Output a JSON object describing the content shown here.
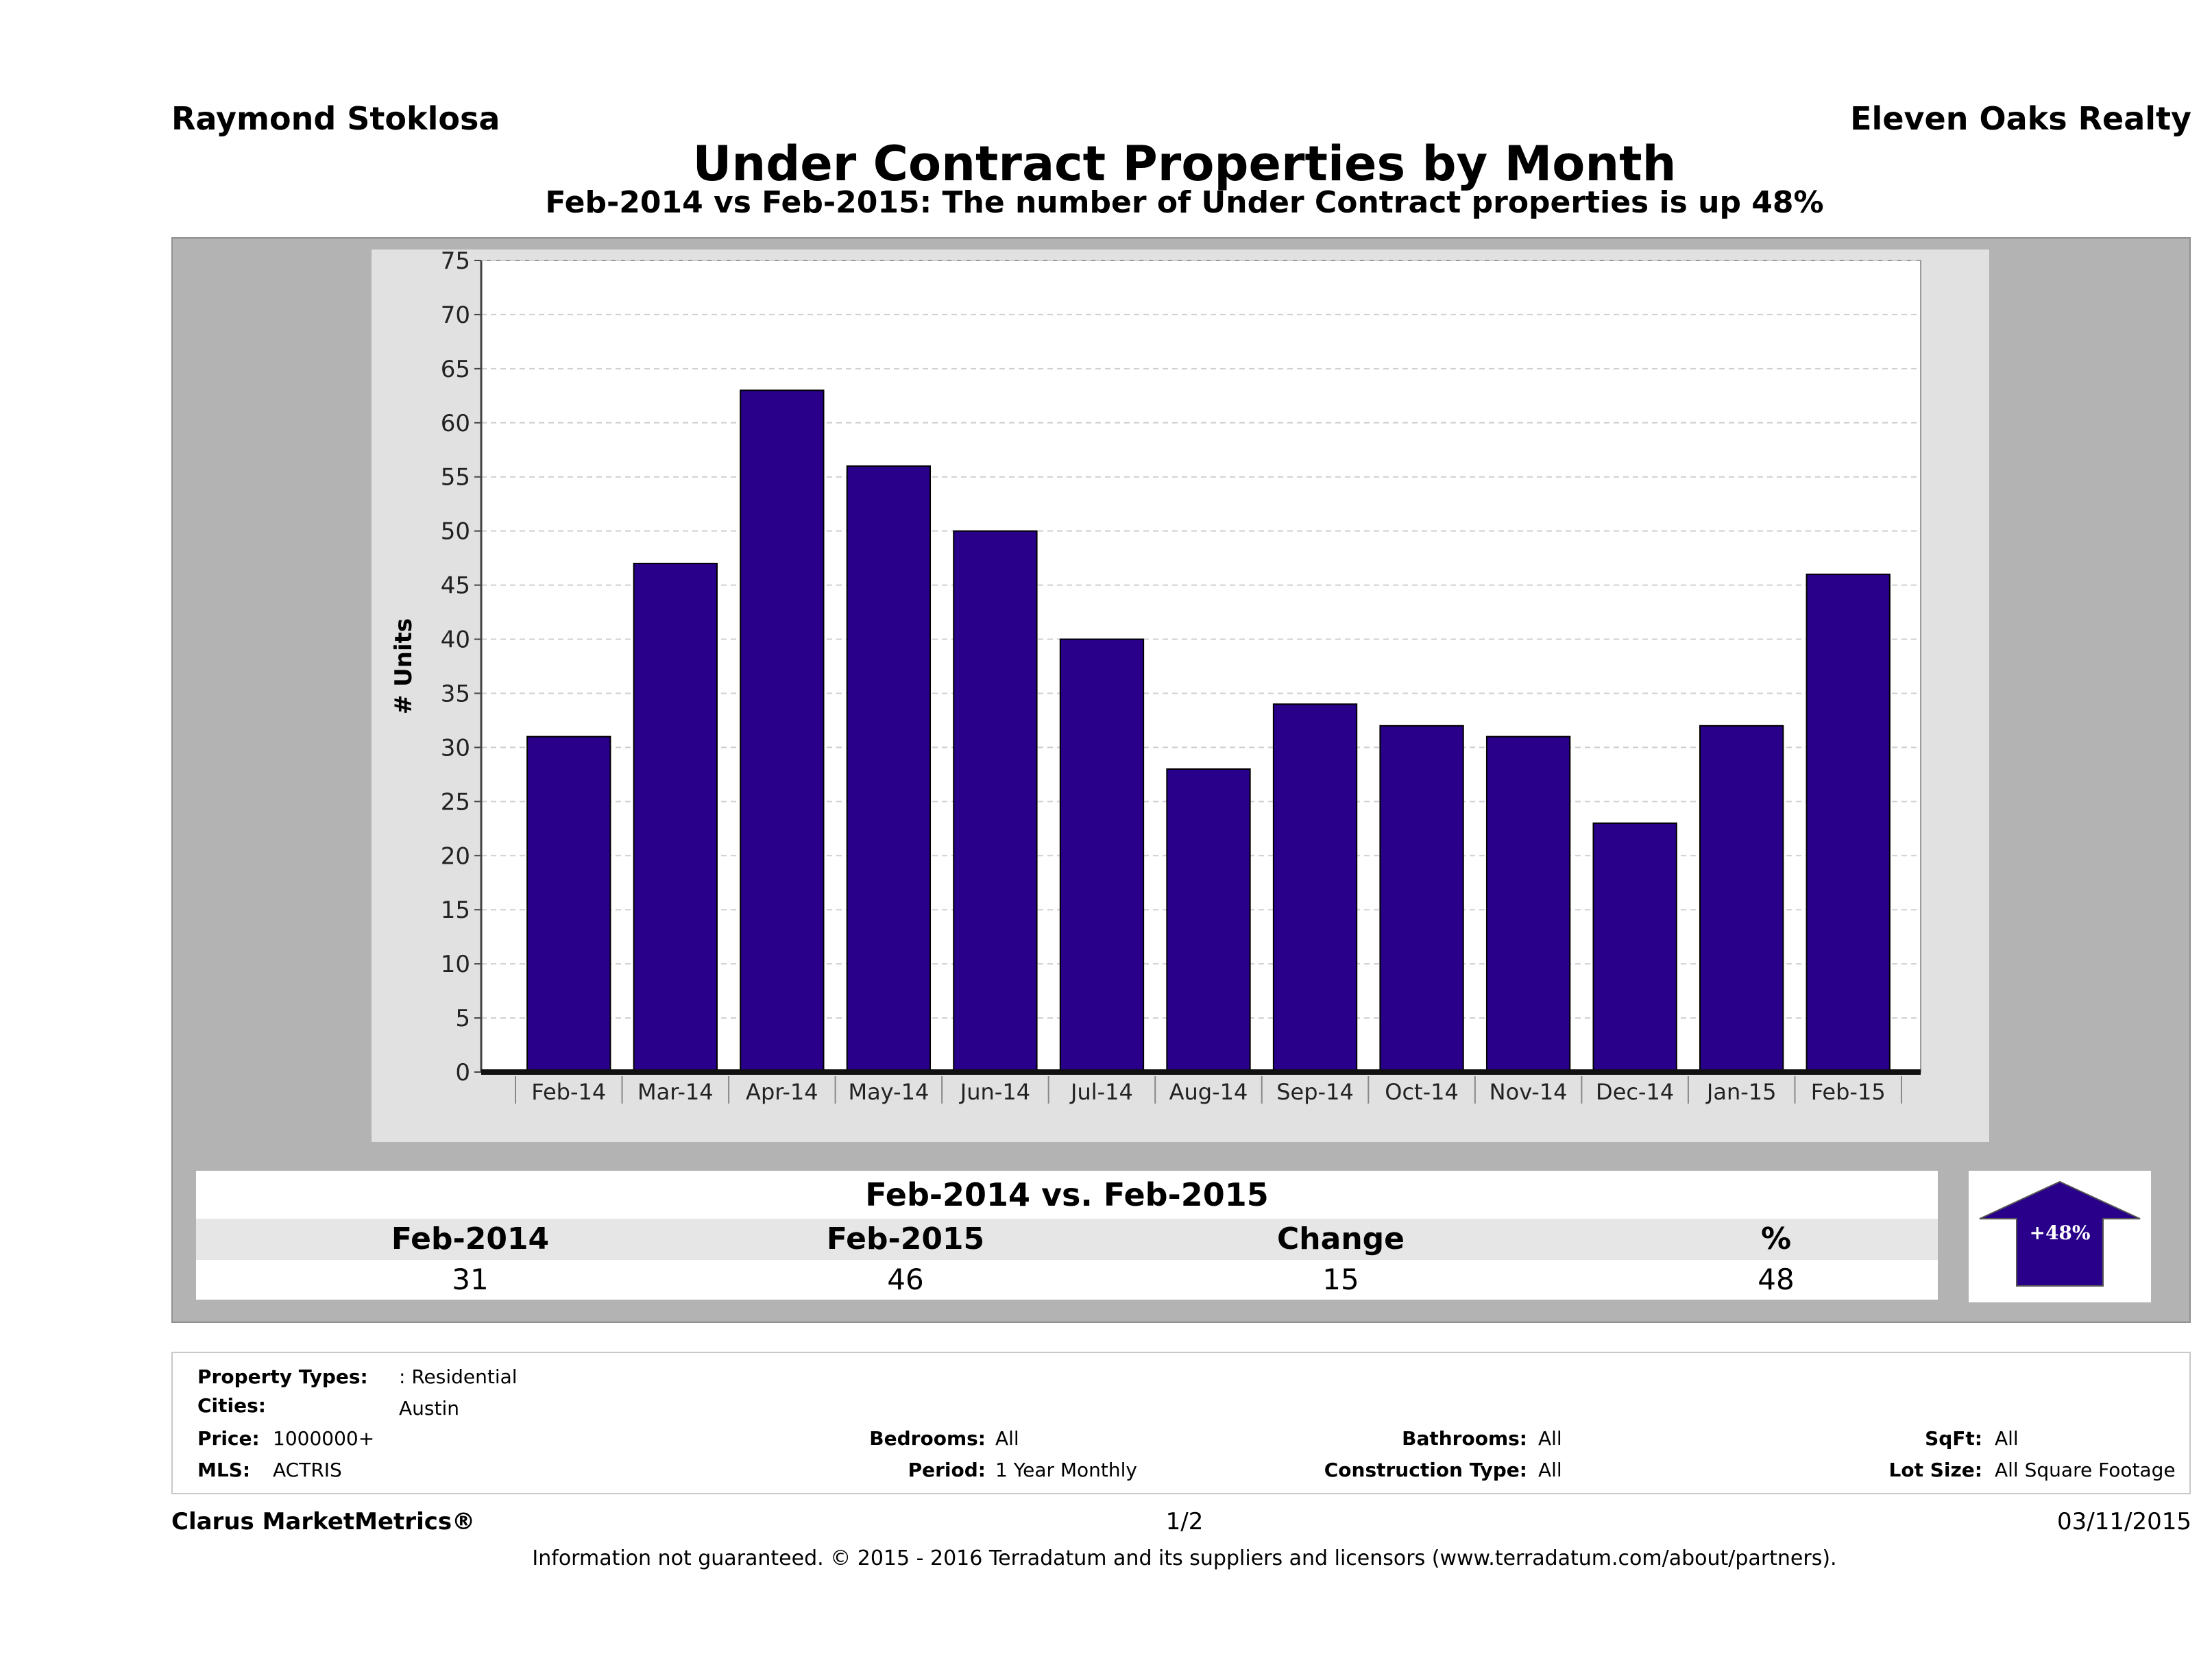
{
  "header": {
    "agent": "Raymond Stoklosa",
    "company": "Eleven Oaks Realty",
    "title": "Under Contract Properties by Month",
    "subtitle": "Feb-2014 vs Feb-2015: The number of Under Contract   properties is up 48%"
  },
  "chart_data": {
    "type": "bar",
    "title": "Under Contract Properties by Month",
    "ylabel": "# Units",
    "xlabel": "",
    "ylim": [
      0,
      75
    ],
    "yticks": [
      0,
      5,
      10,
      15,
      20,
      25,
      30,
      35,
      40,
      45,
      50,
      55,
      60,
      65,
      70,
      75
    ],
    "categories": [
      "Feb-14",
      "Mar-14",
      "Apr-14",
      "May-14",
      "Jun-14",
      "Jul-14",
      "Aug-14",
      "Sep-14",
      "Oct-14",
      "Nov-14",
      "Dec-14",
      "Jan-15",
      "Feb-15"
    ],
    "values": [
      31,
      47,
      63,
      56,
      50,
      40,
      28,
      34,
      32,
      31,
      23,
      32,
      46
    ],
    "bar_color": "#29008a",
    "grid": true
  },
  "comparison": {
    "title": "Feb-2014 vs. Feb-2015",
    "headers": [
      "Feb-2014",
      "Feb-2015",
      "Change",
      "%"
    ],
    "values": [
      "31",
      "46",
      "15",
      "48"
    ],
    "arrow_label": "+48%",
    "arrow_direction": "up"
  },
  "criteria": {
    "property_types_label": "Property Types:",
    "property_types_value": ": Residential",
    "cities_label": "Cities:",
    "cities_value": "Austin",
    "price_label": "Price:",
    "price_value": "1000000+",
    "mls_label": "MLS:",
    "mls_value": "ACTRIS",
    "bedrooms_label": "Bedrooms:",
    "bedrooms_value": "All",
    "period_label": "Period:",
    "period_value": "1 Year Monthly",
    "bathrooms_label": "Bathrooms:",
    "bathrooms_value": "All",
    "construction_label": "Construction Type:",
    "construction_value": "All",
    "sqft_label": "SqFt:",
    "sqft_value": "All",
    "lotsize_label": "Lot Size:",
    "lotsize_value": "All Square Footage"
  },
  "footer": {
    "brand": "Clarus MarketMetrics®",
    "page": "1/2",
    "date": "03/11/2015",
    "disclaimer": "Information not guaranteed. © 2015 - 2016 Terradatum and its suppliers and licensors (www.terradatum.com/about/partners)."
  }
}
